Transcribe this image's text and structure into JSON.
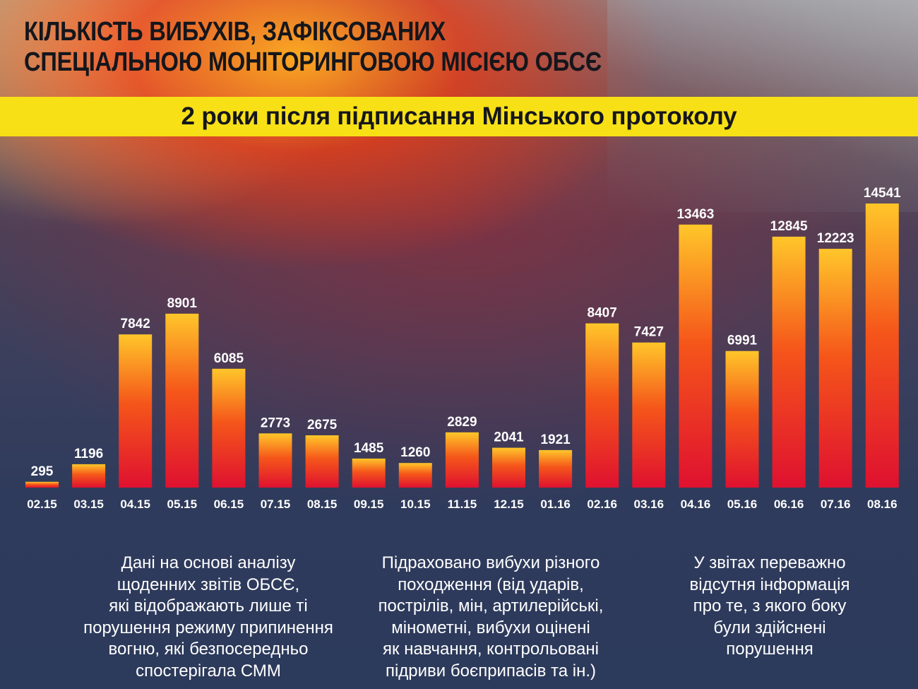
{
  "header": {
    "title_lines": [
      "КІЛЬКІСТЬ ВИБУХІВ, ЗАФІКСОВАНИХ",
      "СПЕЦІАЛЬНОЮ МОНІТОРИНГОВОЮ МІСІЄЮ ОБСЄ"
    ],
    "subtitle": "2 роки після підписання Мінського протоколу"
  },
  "chart_data": {
    "type": "bar",
    "title": "КІЛЬКІСТЬ ВИБУХІВ, ЗАФІКСОВАНИХ СПЕЦІАЛЬНОЮ МОНІТОРИНГОВОЮ МІСІЄЮ ОБСЄ",
    "subtitle": "2 роки після підписання Мінського протоколу",
    "categories": [
      "02.15",
      "03.15",
      "04.15",
      "05.15",
      "06.15",
      "07.15",
      "08.15",
      "09.15",
      "10.15",
      "11.15",
      "12.15",
      "01.16",
      "02.16",
      "03.16",
      "04.16",
      "05.16",
      "06.16",
      "07.16",
      "08.16"
    ],
    "values": [
      295,
      1196,
      7842,
      8901,
      6085,
      2773,
      2675,
      1485,
      1260,
      2829,
      2041,
      1921,
      8407,
      7427,
      13463,
      6991,
      12845,
      12223,
      14541
    ],
    "value_labels": [
      "295",
      "1196",
      "7842",
      "8901",
      "6085",
      "2773",
      "2675",
      "1485",
      "1260",
      "2829",
      "2041",
      "1921",
      "8407",
      "7427",
      "13463",
      "6991",
      "12845",
      "12223",
      "14541"
    ],
    "ylim": [
      0,
      14541
    ],
    "grid": false,
    "legend": "none",
    "bar_gradient": {
      "top": "#ffc62a",
      "middle": "#f5561a",
      "bottom": "#df1130"
    }
  },
  "notes": [
    {
      "lines": [
        "Дані на основі аналізу",
        "щоденних звітів ОБСЄ,",
        "які відображають лише ті",
        "порушення режиму припинення",
        "вогню, які безпосередньо",
        "спостерігала СММ"
      ]
    },
    {
      "lines": [
        "Підраховано вибухи різного",
        "походження (від ударів,",
        "пострілів, мін, артилерійські,",
        "мінометні, вибухи оцінені",
        "як навчання, контрольовані",
        "підриви боєприпасів та ін.)"
      ]
    },
    {
      "lines": [
        "У звітах переважно",
        "відсутня інформація",
        "про те, з якого боку",
        "були здійснені",
        "порушення"
      ]
    }
  ],
  "colors": {
    "banner": "#f7e016",
    "title_text": "#15161c",
    "label_text": "#ffffff"
  }
}
